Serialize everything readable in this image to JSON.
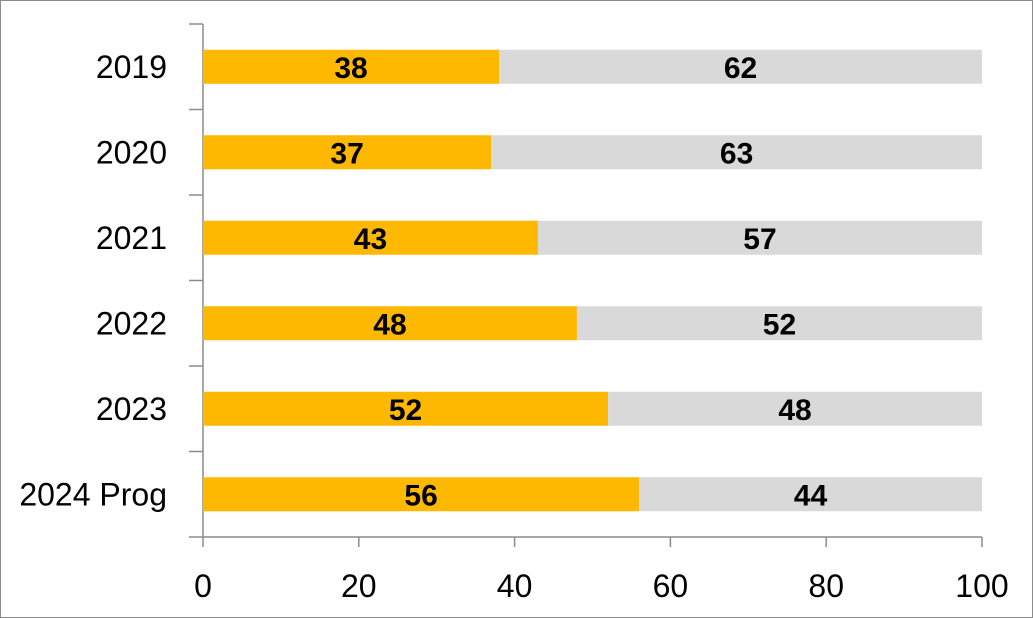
{
  "chart_data": {
    "type": "bar",
    "orientation": "horizontal",
    "stacked": true,
    "title": "",
    "xlabel": "",
    "ylabel": "",
    "categories": [
      "2019",
      "2020",
      "2021",
      "2022",
      "2023",
      "2024 Prog"
    ],
    "series": [
      {
        "values": [
          38,
          37,
          43,
          48,
          52,
          56
        ],
        "color": "#FFB800"
      },
      {
        "values": [
          62,
          63,
          57,
          52,
          48,
          44
        ],
        "color": "#D9D9D9"
      }
    ],
    "xlim": [
      0,
      100
    ],
    "xticks": [
      "0",
      "20",
      "40",
      "60",
      "80",
      "100"
    ],
    "grid": false,
    "legend": "none",
    "data_labels": true
  }
}
